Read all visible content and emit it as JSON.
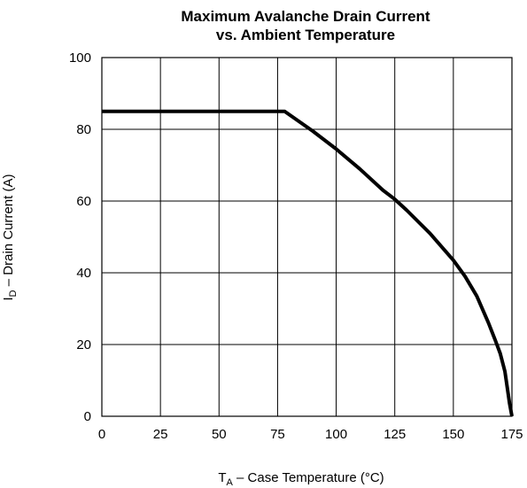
{
  "chart_data": {
    "type": "line",
    "title_line1": "Maximum Avalanche Drain Current",
    "title_line2": "vs. Ambient  Temperature",
    "xlabel": "T",
    "xlabel_sub": "A",
    "xlabel_rest": " – Case Temperature (°C)",
    "ylabel": "I",
    "ylabel_sub": "D",
    "ylabel_rest": " – Drain Current (A)",
    "xlim": [
      0,
      175
    ],
    "ylim": [
      0,
      100
    ],
    "x_ticks": [
      "0",
      "25",
      "50",
      "75",
      "100",
      "125",
      "150",
      "175"
    ],
    "y_ticks": [
      "0",
      "20",
      "40",
      "60",
      "80",
      "100"
    ],
    "grid": true,
    "series": [
      {
        "x": [
          0,
          78,
          90,
          100,
          110,
          120,
          125,
          130,
          140,
          150,
          155,
          160,
          165,
          168,
          170,
          172,
          173,
          174,
          175
        ],
        "y": [
          85,
          85,
          79.5,
          74.5,
          69,
          63,
          60.5,
          57.5,
          51,
          43.5,
          39,
          33.5,
          26,
          21,
          17.5,
          12.5,
          8,
          3.5,
          0
        ]
      }
    ]
  }
}
